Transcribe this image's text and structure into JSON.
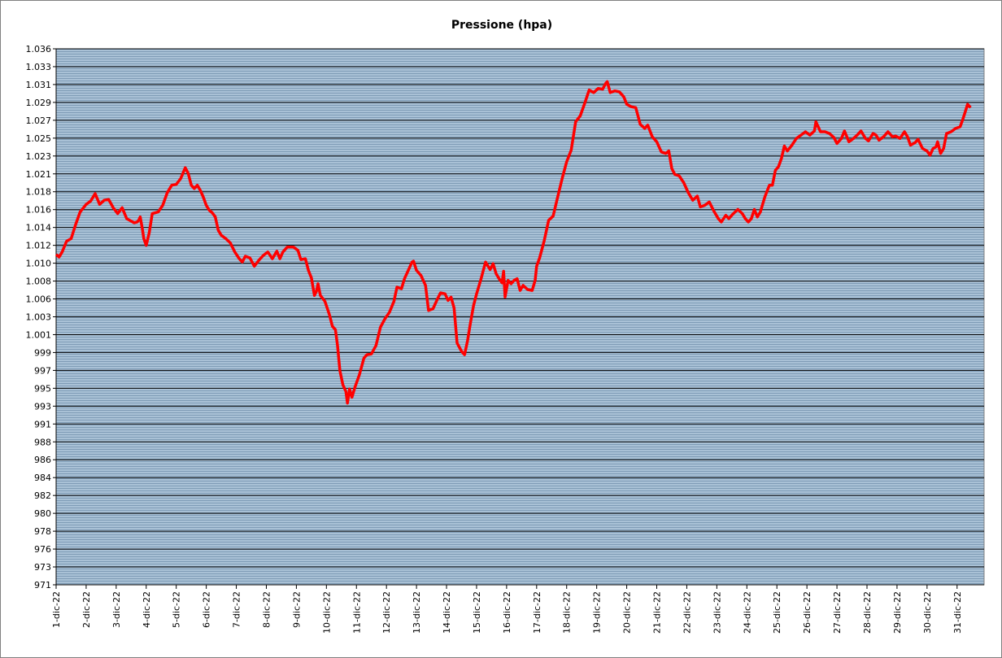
{
  "chart_data": {
    "type": "line",
    "title": "Pressione (hpa)",
    "color": "#ff0000",
    "grid": true,
    "xlim": [
      1,
      31.9
    ],
    "xticks": [
      {
        "value": 1,
        "label": "1-dic-22"
      },
      {
        "value": 2,
        "label": "2-dic-22"
      },
      {
        "value": 3,
        "label": "3-dic-22"
      },
      {
        "value": 4,
        "label": "4-dic-22"
      },
      {
        "value": 5,
        "label": "5-dic-22"
      },
      {
        "value": 6,
        "label": "6-dic-22"
      },
      {
        "value": 7,
        "label": "7-dic-22"
      },
      {
        "value": 8,
        "label": "8-dic-22"
      },
      {
        "value": 9,
        "label": "9-dic-22"
      },
      {
        "value": 10,
        "label": "10-dic-22"
      },
      {
        "value": 11,
        "label": "11-dic-22"
      },
      {
        "value": 12,
        "label": "12-dic-22"
      },
      {
        "value": 13,
        "label": "13-dic-22"
      },
      {
        "value": 14,
        "label": "14-dic-22"
      },
      {
        "value": 15,
        "label": "15-dic-22"
      },
      {
        "value": 16,
        "label": "16-dic-22"
      },
      {
        "value": 17,
        "label": "17-dic-22"
      },
      {
        "value": 18,
        "label": "18-dic-22"
      },
      {
        "value": 19,
        "label": "19-dic-22"
      },
      {
        "value": 20,
        "label": "20-dic-22"
      },
      {
        "value": 21,
        "label": "21-dic-22"
      },
      {
        "value": 22,
        "label": "22-dic-22"
      },
      {
        "value": 23,
        "label": "23-dic-22"
      },
      {
        "value": 24,
        "label": "24-dic-22"
      },
      {
        "value": 25,
        "label": "25-dic-22"
      },
      {
        "value": 26,
        "label": "26-dic-22"
      },
      {
        "value": 27,
        "label": "27-dic-22"
      },
      {
        "value": 28,
        "label": "28-dic-22"
      },
      {
        "value": 29,
        "label": "29-dic-22"
      },
      {
        "value": 30,
        "label": "30-dic-22"
      },
      {
        "value": 31,
        "label": "31-dic-22"
      }
    ],
    "ylim": [
      971.34,
      1035.54
    ],
    "yticks": [
      {
        "value": 971.34,
        "label": "971"
      },
      {
        "value": 973.48,
        "label": "973"
      },
      {
        "value": 975.62,
        "label": "976"
      },
      {
        "value": 977.76,
        "label": "978"
      },
      {
        "value": 979.9,
        "label": "980"
      },
      {
        "value": 982.04,
        "label": "982"
      },
      {
        "value": 984.18,
        "label": "984"
      },
      {
        "value": 986.32,
        "label": "986"
      },
      {
        "value": 988.46,
        "label": "988"
      },
      {
        "value": 990.6,
        "label": "991"
      },
      {
        "value": 992.74,
        "label": "993"
      },
      {
        "value": 994.88,
        "label": "995"
      },
      {
        "value": 997.02,
        "label": "997"
      },
      {
        "value": 999.16,
        "label": "999"
      },
      {
        "value": 1001.3,
        "label": "1.001"
      },
      {
        "value": 1003.44,
        "label": "1.003"
      },
      {
        "value": 1005.58,
        "label": "1.006"
      },
      {
        "value": 1007.72,
        "label": "1.008"
      },
      {
        "value": 1009.86,
        "label": "1.010"
      },
      {
        "value": 1012.0,
        "label": "1.012"
      },
      {
        "value": 1014.14,
        "label": "1.014"
      },
      {
        "value": 1016.28,
        "label": "1.016"
      },
      {
        "value": 1018.42,
        "label": "1.018"
      },
      {
        "value": 1020.56,
        "label": "1.021"
      },
      {
        "value": 1022.7,
        "label": "1.023"
      },
      {
        "value": 1024.84,
        "label": "1.025"
      },
      {
        "value": 1026.98,
        "label": "1.027"
      },
      {
        "value": 1029.12,
        "label": "1.029"
      },
      {
        "value": 1031.26,
        "label": "1.031"
      },
      {
        "value": 1033.4,
        "label": "1.033"
      },
      {
        "value": 1035.54,
        "label": "1.036"
      }
    ],
    "x": [
      1.0,
      1.1,
      1.2,
      1.35,
      1.5,
      1.65,
      1.8,
      2.0,
      2.15,
      2.3,
      2.45,
      2.6,
      2.75,
      2.9,
      3.05,
      3.2,
      3.35,
      3.5,
      3.6,
      3.7,
      3.75,
      3.8,
      3.87,
      3.92,
      4.0,
      4.1,
      4.2,
      4.3,
      4.4,
      4.55,
      4.7,
      4.85,
      5.0,
      5.15,
      5.3,
      5.4,
      5.5,
      5.6,
      5.7,
      5.8,
      5.9,
      6.0,
      6.1,
      6.2,
      6.3,
      6.4,
      6.5,
      6.65,
      6.8,
      6.95,
      7.1,
      7.2,
      7.3,
      7.45,
      7.6,
      7.75,
      7.9,
      8.05,
      8.2,
      8.35,
      8.45,
      8.55,
      8.7,
      8.9,
      9.05,
      9.15,
      9.3,
      9.4,
      9.5,
      9.6,
      9.67,
      9.72,
      9.8,
      9.95,
      10.1,
      10.2,
      10.3,
      10.37,
      10.45,
      10.55,
      10.65,
      10.7,
      10.77,
      10.85,
      10.95,
      11.1,
      11.25,
      11.35,
      11.5,
      11.65,
      11.8,
      11.95,
      12.1,
      12.25,
      12.35,
      12.5,
      12.6,
      12.75,
      12.85,
      12.9,
      13.0,
      13.15,
      13.3,
      13.4,
      13.55,
      13.7,
      13.8,
      13.95,
      14.05,
      14.15,
      14.25,
      14.35,
      14.5,
      14.6,
      14.7,
      14.8,
      14.9,
      15.0,
      15.15,
      15.3,
      15.45,
      15.55,
      15.65,
      15.75,
      15.85,
      15.9,
      15.95,
      16.05,
      16.15,
      16.25,
      16.35,
      16.45,
      16.55,
      16.7,
      16.85,
      16.95,
      17.0,
      17.1,
      17.25,
      17.4,
      17.55,
      17.7,
      17.85,
      18.0,
      18.15,
      18.3,
      18.45,
      18.6,
      18.75,
      18.9,
      19.05,
      19.2,
      19.3,
      19.35,
      19.45,
      19.6,
      19.75,
      19.9,
      20.0,
      20.15,
      20.3,
      20.45,
      20.6,
      20.7,
      20.85,
      21.0,
      21.15,
      21.3,
      21.4,
      21.5,
      21.6,
      21.75,
      21.9,
      22.05,
      22.2,
      22.35,
      22.45,
      22.6,
      22.75,
      22.9,
      23.05,
      23.15,
      23.3,
      23.4,
      23.55,
      23.7,
      23.85,
      23.95,
      24.05,
      24.15,
      24.25,
      24.35,
      24.45,
      24.6,
      24.75,
      24.85,
      24.95,
      25.05,
      25.15,
      25.25,
      25.35,
      25.5,
      25.65,
      25.8,
      25.95,
      26.1,
      26.25,
      26.3,
      26.45,
      26.6,
      26.75,
      26.9,
      27.0,
      27.15,
      27.25,
      27.4,
      27.55,
      27.7,
      27.8,
      27.95,
      28.05,
      28.2,
      28.3,
      28.4,
      28.55,
      28.7,
      28.85,
      28.95,
      29.1,
      29.25,
      29.35,
      29.45,
      29.6,
      29.7,
      29.85,
      30.0,
      30.1,
      30.2,
      30.3,
      30.35,
      30.45,
      30.55,
      30.65,
      30.8,
      30.95,
      31.1,
      31.2,
      31.3,
      31.35,
      31.45
    ],
    "values": [
      1010.9,
      1010.6,
      1011.2,
      1012.5,
      1012.8,
      1014.5,
      1016.0,
      1016.9,
      1017.3,
      1018.2,
      1016.9,
      1017.4,
      1017.5,
      1016.5,
      1015.8,
      1016.5,
      1015.2,
      1014.9,
      1014.7,
      1014.8,
      1015.0,
      1015.4,
      1014.0,
      1012.8,
      1012.0,
      1013.5,
      1015.8,
      1015.9,
      1016.0,
      1016.8,
      1018.3,
      1019.2,
      1019.3,
      1020.0,
      1021.3,
      1020.6,
      1019.2,
      1018.8,
      1019.2,
      1018.6,
      1017.8,
      1016.8,
      1016.2,
      1015.9,
      1015.4,
      1013.8,
      1013.2,
      1012.8,
      1012.3,
      1011.2,
      1010.4,
      1010.0,
      1010.7,
      1010.5,
      1009.5,
      1010.2,
      1010.8,
      1011.2,
      1010.4,
      1011.3,
      1010.4,
      1011.2,
      1011.8,
      1011.8,
      1011.4,
      1010.3,
      1010.4,
      1009.0,
      1008.1,
      1006.0,
      1006.5,
      1007.4,
      1006.0,
      1005.3,
      1003.7,
      1002.3,
      1001.9,
      1000.0,
      997.0,
      995.3,
      994.5,
      993.1,
      994.8,
      993.8,
      995.0,
      996.5,
      998.5,
      998.9,
      999.0,
      1000.0,
      1002.2,
      1003.2,
      1004.0,
      1005.3,
      1007.0,
      1006.8,
      1008.0,
      1009.2,
      1010.0,
      1010.1,
      1009.0,
      1008.4,
      1007.2,
      1004.2,
      1004.4,
      1005.6,
      1006.3,
      1006.2,
      1005.4,
      1005.8,
      1004.5,
      1000.3,
      999.3,
      998.9,
      1000.6,
      1002.8,
      1004.8,
      1006.2,
      1008.0,
      1010.0,
      1009.1,
      1009.8,
      1008.6,
      1008.0,
      1007.5,
      1008.9,
      1005.8,
      1007.8,
      1007.4,
      1007.8,
      1008.0,
      1006.6,
      1007.2,
      1006.7,
      1006.6,
      1007.8,
      1009.5,
      1010.5,
      1012.5,
      1015.0,
      1015.5,
      1017.8,
      1020.0,
      1022.0,
      1023.4,
      1026.8,
      1027.5,
      1029.0,
      1030.6,
      1030.3,
      1030.8,
      1030.7,
      1031.4,
      1031.6,
      1030.3,
      1030.5,
      1030.4,
      1029.8,
      1028.9,
      1028.6,
      1028.5,
      1026.5,
      1026.0,
      1026.4,
      1025.0,
      1024.4,
      1023.2,
      1023.0,
      1023.3,
      1021.2,
      1020.5,
      1020.3,
      1019.5,
      1018.3,
      1017.4,
      1017.9,
      1016.6,
      1016.8,
      1017.2,
      1016.1,
      1015.2,
      1014.8,
      1015.6,
      1015.2,
      1015.8,
      1016.3,
      1015.8,
      1015.2,
      1014.8,
      1015.2,
      1016.3,
      1015.4,
      1016.0,
      1017.8,
      1019.2,
      1019.2,
      1021.0,
      1021.4,
      1022.4,
      1023.9,
      1023.3,
      1024.0,
      1024.8,
      1025.2,
      1025.6,
      1025.2,
      1025.7,
      1026.8,
      1025.6,
      1025.6,
      1025.4,
      1024.9,
      1024.2,
      1024.8,
      1025.7,
      1024.4,
      1024.8,
      1025.3,
      1025.7,
      1024.8,
      1024.5,
      1025.4,
      1025.2,
      1024.6,
      1025.0,
      1025.6,
      1025.0,
      1025.1,
      1024.8,
      1025.6,
      1025.0,
      1024.0,
      1024.3,
      1024.7,
      1023.6,
      1023.3,
      1022.8,
      1023.6,
      1023.8,
      1024.4,
      1023.0,
      1023.6,
      1025.4,
      1025.6,
      1026.0,
      1026.2,
      1027.2,
      1028.3,
      1028.9,
      1028.5
    ]
  }
}
